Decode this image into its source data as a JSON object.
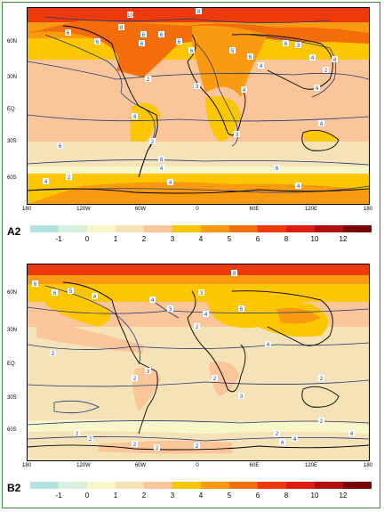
{
  "lat_labels": [
    "60N",
    "30N",
    "EQ",
    "30S",
    "60S"
  ],
  "lon_labels": [
    "180",
    "120W",
    "60W",
    "0",
    "60E",
    "120E",
    "180"
  ],
  "colorbar": {
    "colors": [
      "#b3e2e2",
      "#d9efe0",
      "#f7f7c9",
      "#f5e2b6",
      "#fbc59a",
      "#fcc700",
      "#f99a10",
      "#f46d0b",
      "#ee3a0b",
      "#de1c0f",
      "#b10e0e",
      "#7a0606"
    ],
    "tick_labels": [
      "-1",
      "0",
      "1",
      "2",
      "3",
      "4",
      "5",
      "6",
      "8",
      "10",
      "12"
    ]
  },
  "panels": [
    {
      "label": "A2",
      "contour_labels": [
        "8",
        "6",
        "8",
        "10",
        "6",
        "6",
        "6",
        "6",
        "6",
        "6",
        "5",
        "6",
        "4",
        "6",
        "3",
        "4",
        "4",
        "2",
        "3",
        "4",
        "2",
        "4",
        "4",
        "3",
        "4",
        "2",
        "6",
        "4",
        "8",
        "6",
        "4",
        "2",
        "4",
        "4"
      ]
    },
    {
      "label": "B2",
      "contour_labels": [
        "8",
        "8",
        "6",
        "5",
        "4",
        "4",
        "3",
        "3",
        "6",
        "4",
        "2",
        "4",
        "2",
        "3",
        "2",
        "2",
        "3",
        "2",
        "2",
        "2",
        "2",
        "2",
        "2",
        "2",
        "4",
        "2",
        "4",
        "4"
      ]
    }
  ]
}
